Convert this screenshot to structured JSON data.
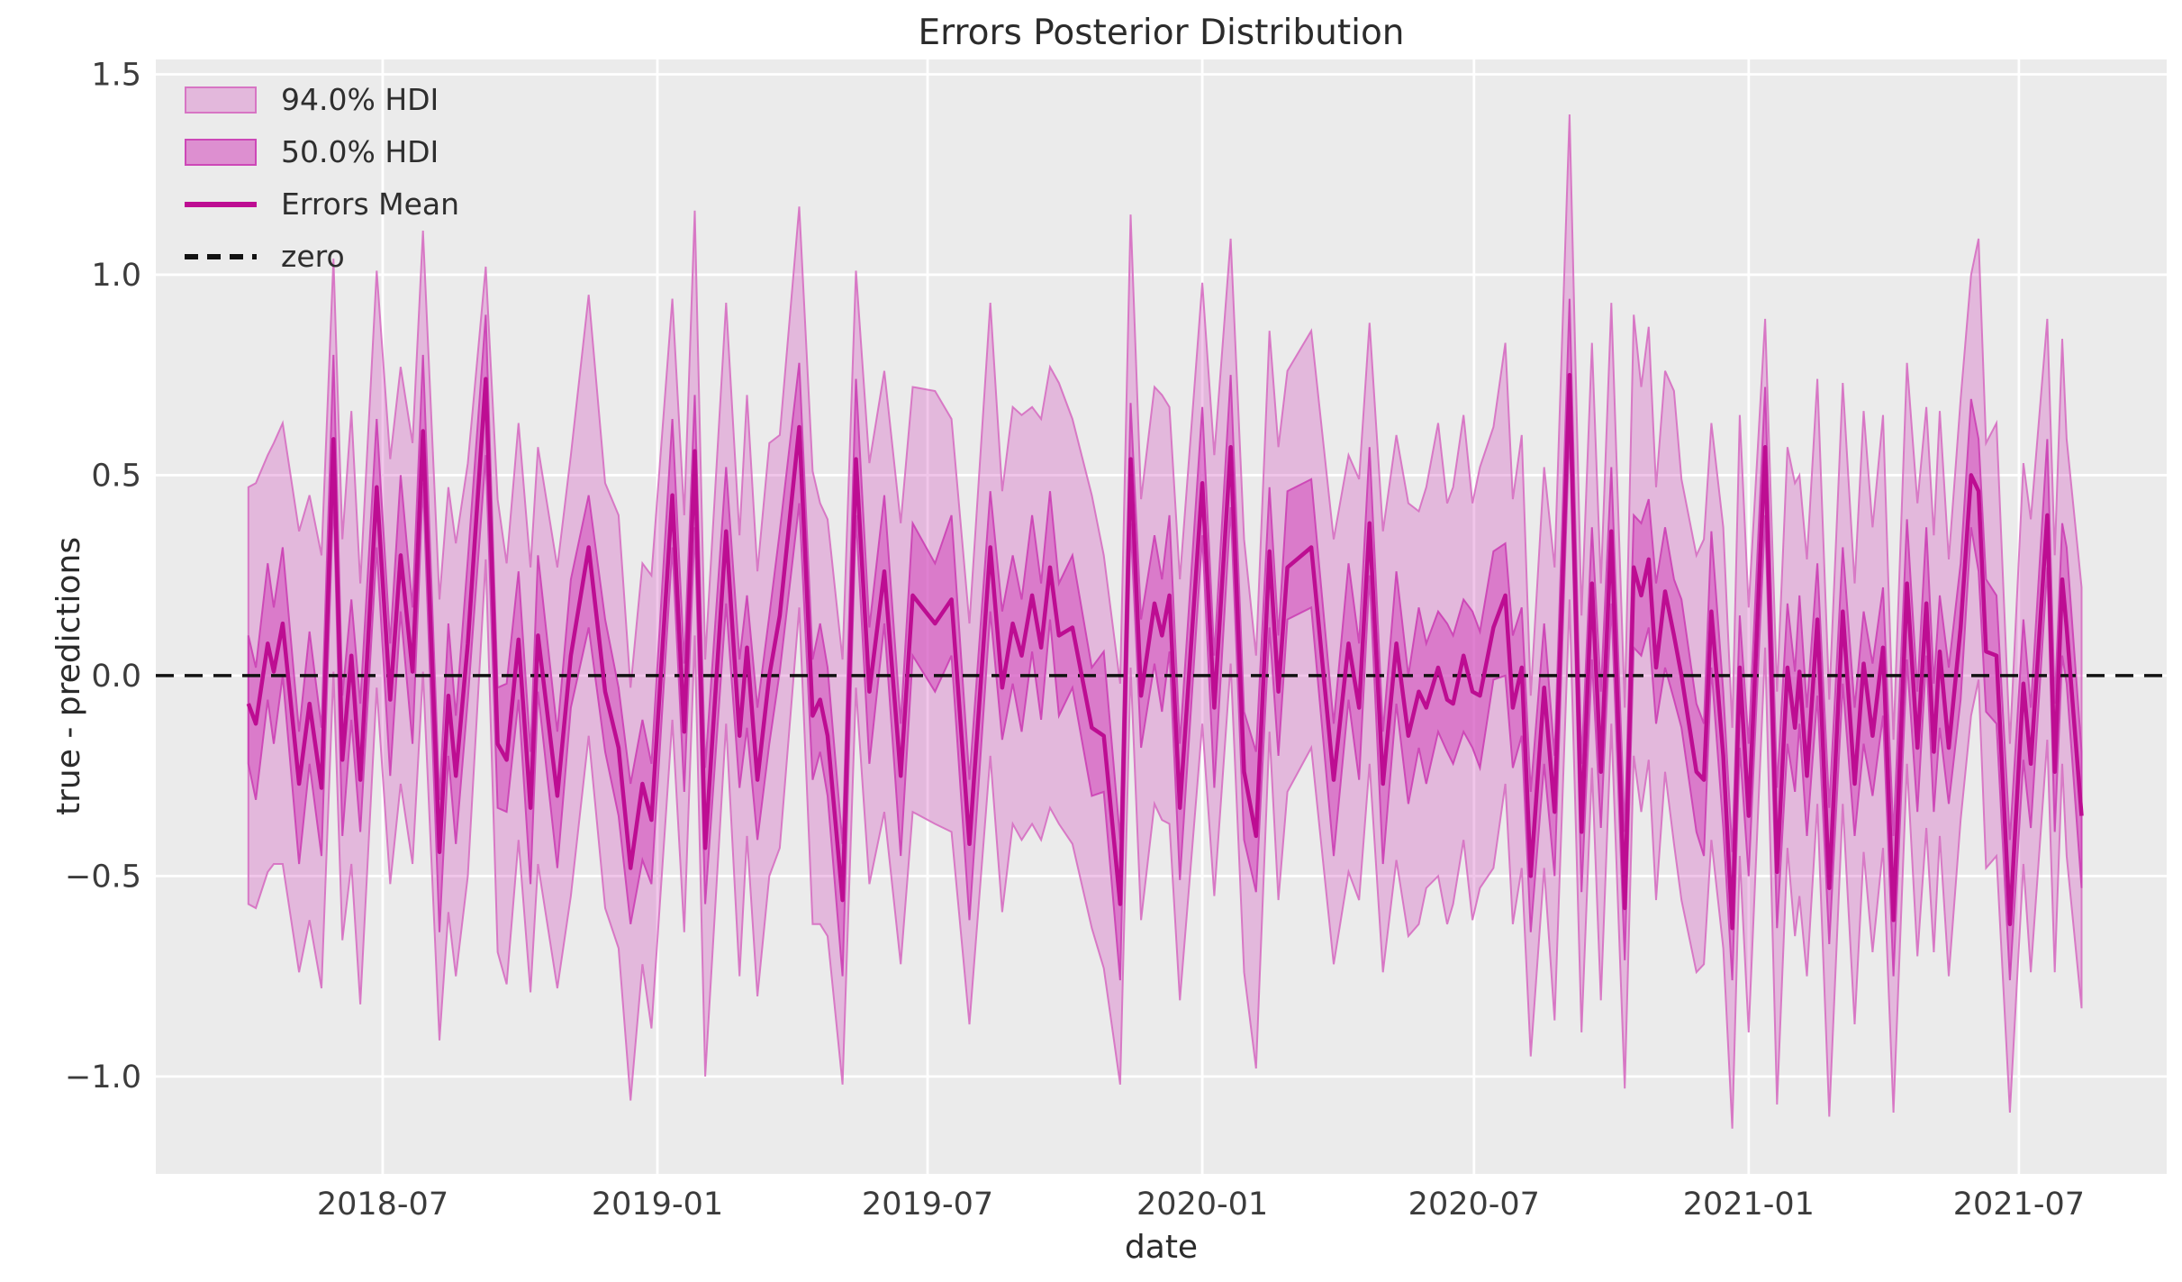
{
  "colors": {
    "figure_bg": "#ffffff",
    "axes_bg": "#ebebeb",
    "grid": "#ffffff",
    "tick_text": "#3c3c3c",
    "label_text": "#2b2b2b",
    "band_base": "#d452be",
    "hdi94_fill": "rgba(212,82,190,0.33)",
    "hdi94_edge": "rgba(213,105,192,0.85)",
    "hdi50_fill": "rgba(212,82,190,0.60)",
    "hdi50_edge": "rgba(203,64,180,0.90)",
    "mean_line": "#bd0d92",
    "zero_line": "#111111"
  },
  "chart_data": {
    "type": "line",
    "title": "Errors Posterior Distribution",
    "xlabel": "date",
    "ylabel": "true - predictions",
    "grid": true,
    "legend_position": "upper left",
    "hdi_probs": [
      94.0,
      50.0
    ],
    "legend": [
      {
        "label": "94.0% HDI",
        "kind": "patch",
        "band": "hdi94"
      },
      {
        "label": "50.0% HDI",
        "kind": "patch",
        "band": "hdi50"
      },
      {
        "label": "Errors Mean",
        "kind": "line"
      },
      {
        "label": "zero",
        "kind": "dashed-line"
      }
    ],
    "x_axis": {
      "range": [
        "2018-01-30",
        "2021-10-08"
      ],
      "ticks": [
        {
          "date": "2018-07-01",
          "label": "2018-07"
        },
        {
          "date": "2019-01-01",
          "label": "2019-01"
        },
        {
          "date": "2019-07-01",
          "label": "2019-07"
        },
        {
          "date": "2020-01-01",
          "label": "2020-01"
        },
        {
          "date": "2020-07-01",
          "label": "2020-07"
        },
        {
          "date": "2021-01-01",
          "label": "2021-01"
        },
        {
          "date": "2021-07-01",
          "label": "2021-07"
        }
      ]
    },
    "y_axis": {
      "range": [
        -1.243,
        1.537
      ],
      "ticks": [
        {
          "value": -1.0,
          "label": "−1.0"
        },
        {
          "value": -0.5,
          "label": "−0.5"
        },
        {
          "value": 0.0,
          "label": "0.0"
        },
        {
          "value": 0.5,
          "label": "0.5"
        },
        {
          "value": 1.0,
          "label": "1.0"
        },
        {
          "value": 1.5,
          "label": "1.5"
        }
      ]
    },
    "zero_reference": 0.0,
    "dates": [
      "2018-04-02",
      "2018-04-07",
      "2018-04-15",
      "2018-04-19",
      "2018-04-25",
      "2018-05-06",
      "2018-05-13",
      "2018-05-21",
      "2018-05-29",
      "2018-06-04",
      "2018-06-10",
      "2018-06-16",
      "2018-06-27",
      "2018-07-06",
      "2018-07-13",
      "2018-07-21",
      "2018-07-28",
      "2018-08-08",
      "2018-08-14",
      "2018-08-19",
      "2018-08-27",
      "2018-09-08",
      "2018-09-16",
      "2018-09-22",
      "2018-09-30",
      "2018-10-08",
      "2018-10-13",
      "2018-10-26",
      "2018-11-04",
      "2018-11-16",
      "2018-11-27",
      "2018-12-06",
      "2018-12-14",
      "2018-12-22",
      "2018-12-28",
      "2019-01-11",
      "2019-01-19",
      "2019-01-26",
      "2019-02-02",
      "2019-02-16",
      "2019-02-25",
      "2019-03-02",
      "2019-03-09",
      "2019-03-17",
      "2019-03-24",
      "2019-04-06",
      "2019-04-15",
      "2019-04-20",
      "2019-04-25",
      "2019-05-05",
      "2019-05-14",
      "2019-05-23",
      "2019-06-02",
      "2019-06-13",
      "2019-06-21",
      "2019-07-06",
      "2019-07-17",
      "2019-07-29",
      "2019-08-12",
      "2019-08-20",
      "2019-08-27",
      "2019-09-02",
      "2019-09-09",
      "2019-09-15",
      "2019-09-21",
      "2019-09-27",
      "2019-10-06",
      "2019-10-19",
      "2019-10-27",
      "2019-11-07",
      "2019-11-14",
      "2019-11-21",
      "2019-11-30",
      "2019-12-05",
      "2019-12-10",
      "2019-12-17",
      "2020-01-01",
      "2020-01-09",
      "2020-01-20",
      "2020-01-29",
      "2020-02-06",
      "2020-02-15",
      "2020-02-21",
      "2020-02-27",
      "2020-03-14",
      "2020-03-29",
      "2020-04-08",
      "2020-04-15",
      "2020-04-22",
      "2020-05-01",
      "2020-05-10",
      "2020-05-18",
      "2020-05-25",
      "2020-05-30",
      "2020-06-07",
      "2020-06-13",
      "2020-06-17",
      "2020-06-24",
      "2020-06-30",
      "2020-07-05",
      "2020-07-14",
      "2020-07-22",
      "2020-07-27",
      "2020-08-02",
      "2020-08-08",
      "2020-08-17",
      "2020-08-24",
      "2020-09-03",
      "2020-09-11",
      "2020-09-18",
      "2020-09-24",
      "2020-10-01",
      "2020-10-10",
      "2020-10-16",
      "2020-10-21",
      "2020-10-26",
      "2020-10-31",
      "2020-11-06",
      "2020-11-12",
      "2020-11-17",
      "2020-11-27",
      "2020-12-02",
      "2020-12-07",
      "2020-12-15",
      "2020-12-21",
      "2020-12-26",
      "2021-01-01",
      "2021-01-12",
      "2021-01-20",
      "2021-01-27",
      "2021-02-01",
      "2021-02-04",
      "2021-02-09",
      "2021-02-16",
      "2021-02-24",
      "2021-03-05",
      "2021-03-13",
      "2021-03-19",
      "2021-03-25",
      "2021-04-01",
      "2021-04-08",
      "2021-04-17",
      "2021-04-24",
      "2021-04-30",
      "2021-05-05",
      "2021-05-09",
      "2021-05-15",
      "2021-05-23",
      "2021-05-30",
      "2021-06-04",
      "2021-06-09",
      "2021-06-16",
      "2021-06-25",
      "2021-07-04",
      "2021-07-09",
      "2021-07-20",
      "2021-07-25",
      "2021-07-30",
      "2021-08-02",
      "2021-08-12"
    ],
    "mean": [
      -0.07,
      -0.12,
      0.08,
      0.01,
      0.13,
      -0.27,
      -0.07,
      -0.28,
      0.59,
      -0.21,
      0.05,
      -0.26,
      0.47,
      -0.06,
      0.3,
      0.01,
      0.61,
      -0.44,
      -0.05,
      -0.25,
      0.08,
      0.74,
      -0.17,
      -0.21,
      0.09,
      -0.33,
      0.1,
      -0.3,
      0.05,
      0.32,
      -0.04,
      -0.18,
      -0.48,
      -0.27,
      -0.36,
      0.45,
      -0.14,
      0.56,
      -0.43,
      0.36,
      -0.15,
      0.07,
      -0.26,
      0.0,
      0.15,
      0.62,
      -0.1,
      -0.06,
      -0.15,
      -0.56,
      0.54,
      -0.04,
      0.26,
      -0.25,
      0.2,
      0.13,
      0.19,
      -0.42,
      0.32,
      -0.03,
      0.13,
      0.05,
      0.2,
      0.07,
      0.27,
      0.1,
      0.12,
      -0.13,
      -0.15,
      -0.57,
      0.54,
      -0.05,
      0.18,
      0.1,
      0.2,
      -0.33,
      0.48,
      -0.08,
      0.57,
      -0.24,
      -0.4,
      0.31,
      -0.04,
      0.27,
      0.32,
      -0.26,
      0.08,
      -0.08,
      0.38,
      -0.27,
      0.08,
      -0.15,
      -0.04,
      -0.08,
      0.02,
      -0.06,
      -0.07,
      0.05,
      -0.04,
      -0.05,
      0.12,
      0.2,
      -0.08,
      0.02,
      -0.5,
      -0.03,
      -0.34,
      0.75,
      -0.39,
      0.23,
      -0.24,
      0.36,
      -0.58,
      0.27,
      0.2,
      0.29,
      0.02,
      0.21,
      0.1,
      0.0,
      -0.24,
      -0.26,
      0.16,
      -0.2,
      -0.63,
      0.02,
      -0.35,
      0.57,
      -0.49,
      0.02,
      -0.13,
      0.01,
      -0.25,
      0.14,
      -0.53,
      0.16,
      -0.27,
      0.03,
      -0.15,
      0.07,
      -0.61,
      0.23,
      -0.18,
      0.18,
      -0.19,
      0.06,
      -0.18,
      0.12,
      0.5,
      0.46,
      0.06,
      0.05,
      -0.62,
      -0.02,
      -0.22,
      0.4,
      -0.24,
      0.24,
      0.12,
      -0.35
    ],
    "hdi94": {
      "upper_halfwidth_pattern": [
        0.54,
        0.6,
        0.47,
        0.57,
        0.5,
        0.63,
        0.52,
        0.58,
        0.45,
        0.55,
        0.61,
        0.49
      ],
      "lower_halfwidth_pattern": [
        0.5,
        0.46,
        0.57,
        0.48,
        0.6,
        0.47,
        0.54,
        0.5,
        0.58,
        0.45,
        0.52,
        0.56
      ],
      "upper_overrides": {
        "21": 0.28,
        "107": 0.65,
        "127": 0.32
      },
      "lower_overrides": {
        "104": 0.45,
        "112": 0.45,
        "124": 0.5,
        "140": 0.48,
        "152": 0.47
      }
    },
    "hdi50": {
      "upper_halfwidth_pattern": [
        0.17,
        0.14,
        0.2,
        0.16,
        0.19,
        0.13,
        0.18,
        0.15,
        0.21,
        0.16,
        0.14,
        0.19
      ],
      "lower_halfwidth_pattern": [
        0.15,
        0.19,
        0.14,
        0.18,
        0.13,
        0.2,
        0.15,
        0.17,
        0.14,
        0.19,
        0.16,
        0.13
      ],
      "upper_overrides": {},
      "lower_overrides": {}
    }
  }
}
